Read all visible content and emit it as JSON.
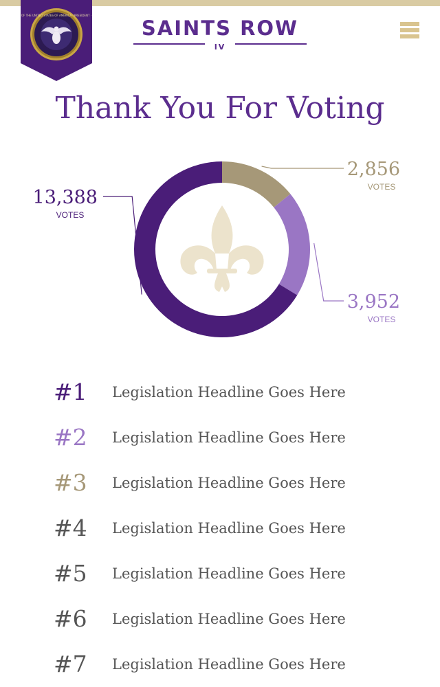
{
  "logo": {
    "main": "SAINTS ROW",
    "sub": "IV"
  },
  "badge": {
    "seal_text": "OF THE UNITED STATES OF AMERICA · PRESIDENT ·"
  },
  "menu": {
    "icon": "hamburger-menu-icon"
  },
  "page": {
    "title": "Thank You For Voting"
  },
  "colors": {
    "purple_dark": "#4a1d78",
    "purple_light": "#9a76c4",
    "tan": "#a69878",
    "gold": "#d9cba3",
    "title": "#5b2d8e"
  },
  "chart_data": {
    "type": "pie",
    "variant": "donut",
    "center_icon": "fleur-de-lis-icon",
    "slices": [
      {
        "value": 2856,
        "label": "2,856",
        "unit": "VOTES",
        "color": "#a69878"
      },
      {
        "value": 3952,
        "label": "3,952",
        "unit": "VOTES",
        "color": "#9a76c4"
      },
      {
        "value": 13388,
        "label": "13,388",
        "unit": "VOTES",
        "color": "#4a1d78"
      }
    ]
  },
  "rankings": [
    {
      "rank": "#1",
      "headline": "Legislation Headline Goes Here",
      "color": "#4a1d78"
    },
    {
      "rank": "#2",
      "headline": "Legislation Headline Goes Here",
      "color": "#9a76c4"
    },
    {
      "rank": "#3",
      "headline": "Legislation Headline Goes Here",
      "color": "#a69878"
    },
    {
      "rank": "#4",
      "headline": "Legislation Headline Goes Here",
      "color": "#555555"
    },
    {
      "rank": "#5",
      "headline": "Legislation Headline Goes Here",
      "color": "#555555"
    },
    {
      "rank": "#6",
      "headline": "Legislation Headline Goes Here",
      "color": "#555555"
    },
    {
      "rank": "#7",
      "headline": "Legislation Headline Goes Here",
      "color": "#555555"
    }
  ]
}
